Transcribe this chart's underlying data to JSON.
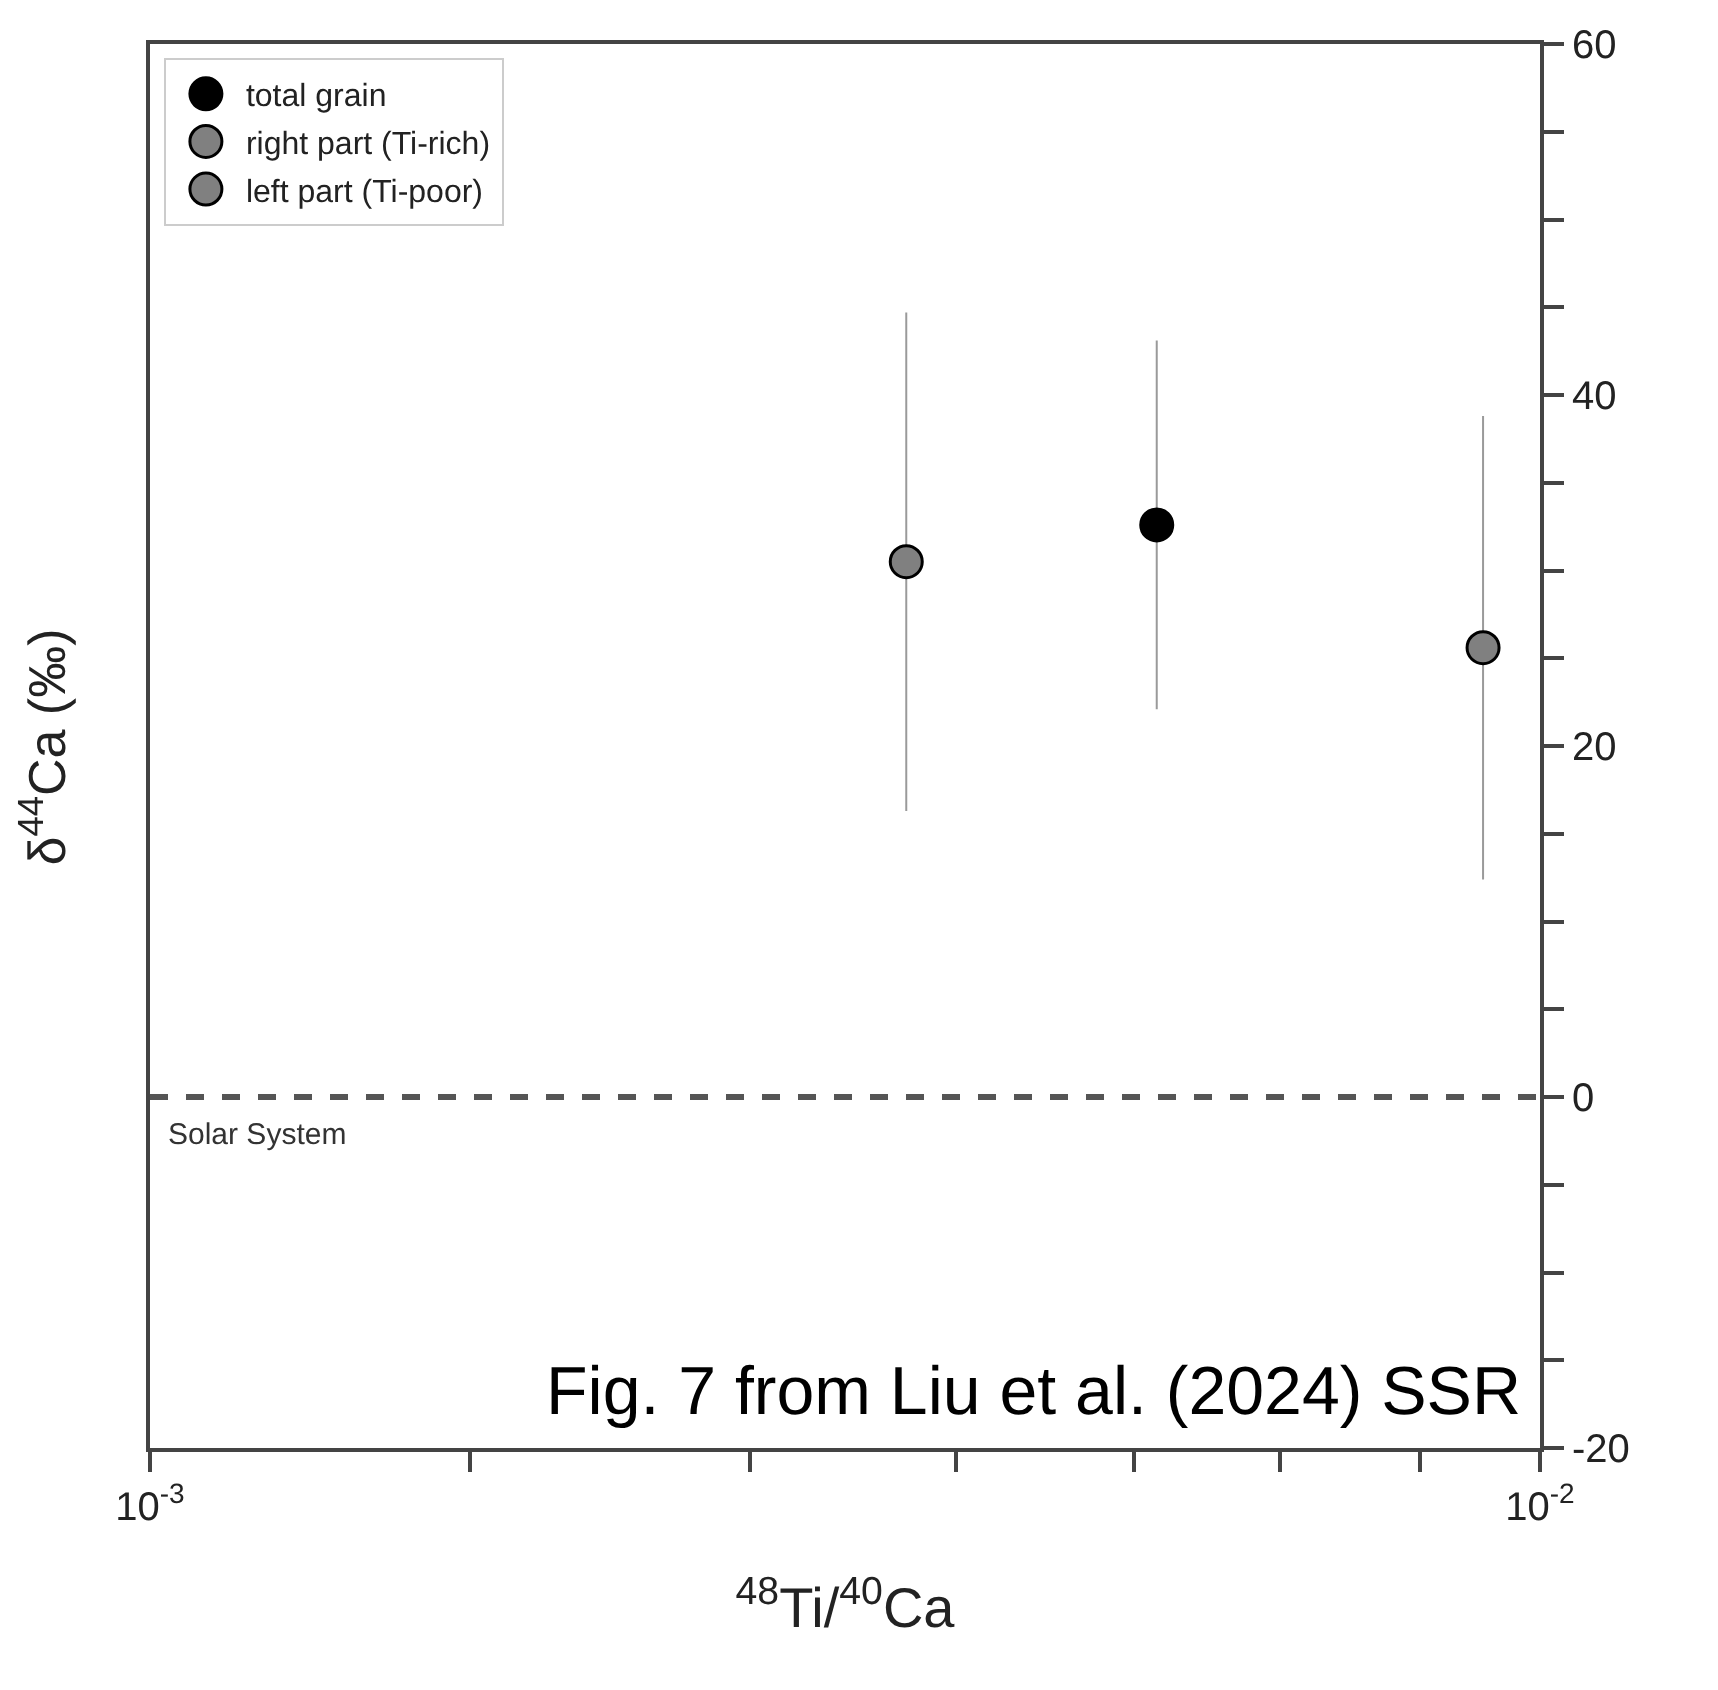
{
  "chart_data": {
    "type": "scatter",
    "xlabel": "$^{48}$Ti/$^{40}$Ca",
    "ylabel": "δ$^{44}$Ca (‰)",
    "log": "x",
    "xlim": [
      0.001,
      0.01
    ],
    "xticks": [
      {
        "value": 0.001,
        "label": "10$^{-3}$"
      },
      {
        "value": 0.0017,
        "label": null
      },
      {
        "value": 0.0027,
        "label": null
      },
      {
        "value": 0.0038,
        "label": null
      },
      {
        "value": 0.0051,
        "label": null
      },
      {
        "value": 0.0065,
        "label": null
      },
      {
        "value": 0.0082,
        "label": null
      },
      {
        "value": 0.01,
        "label": "10$^{-2}$"
      }
    ],
    "ylim": [
      -20,
      60
    ],
    "yticks": [
      {
        "value": -20,
        "label": "-20"
      },
      {
        "value": -15,
        "label": null
      },
      {
        "value": -10,
        "label": null
      },
      {
        "value": -5,
        "label": null
      },
      0,
      {
        "value": 5,
        "label": null
      },
      {
        "value": 10,
        "label": null
      },
      {
        "value": 15,
        "label": null
      },
      20,
      {
        "value": 25,
        "label": null
      },
      {
        "value": 30,
        "label": null
      },
      {
        "value": 35,
        "label": null
      },
      40,
      {
        "value": 45,
        "label": null
      },
      {
        "value": 50,
        "label": null
      },
      {
        "value": 55,
        "label": null
      },
      60
    ],
    "legend": "top left",
    "marker": "circle",
    "series": [
      {
        "name": "total grain",
        "color": "#000000",
        "x": [
          0.0053
        ],
        "values": [
          32.6
        ],
        "errors": [
          10.5
        ]
      },
      {
        "name": "right part (Ti-rich)",
        "color": "#808080",
        "x": [
          0.0091
        ],
        "values": [
          25.6
        ],
        "errors": [
          13.2
        ]
      },
      {
        "name": "left part (Ti-poor)",
        "color": "#808080",
        "x": [
          0.0035
        ],
        "values": [
          30.5
        ],
        "errors": [
          14.2
        ]
      }
    ],
    "ref_lines": [
      {
        "axis": "y",
        "value": 0,
        "label": "Solar System",
        "color": "#555555",
        "line_style": "dashed"
      }
    ],
    "annotations": [
      "Fig. 7 from Liu et al. (2024) SSR"
    ]
  }
}
